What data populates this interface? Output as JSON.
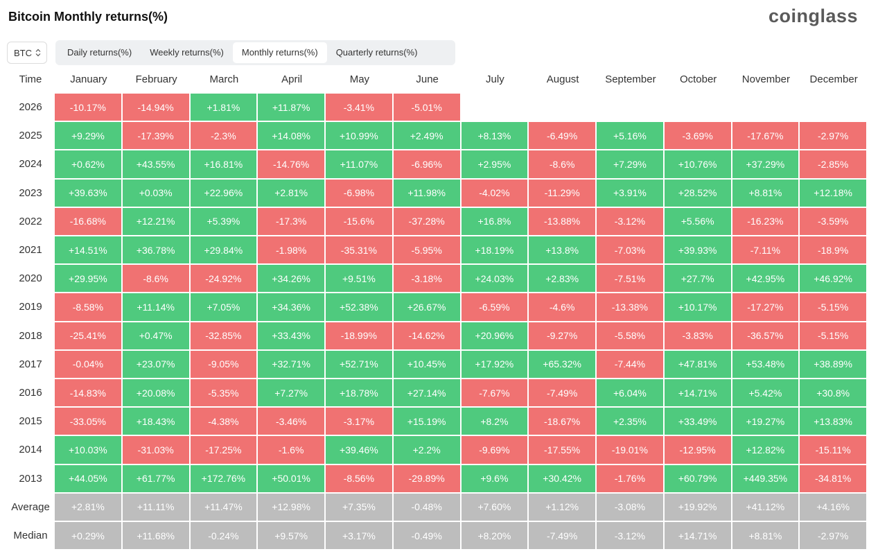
{
  "header": {
    "title": "Bitcoin Monthly returns(%)",
    "brand": "coinglass"
  },
  "selector": "BTC",
  "tabs": [
    "Daily returns(%)",
    "Weekly returns(%)",
    "Monthly returns(%)",
    "Quarterly returns(%)"
  ],
  "table": {
    "columns": [
      "Time",
      "January",
      "February",
      "March",
      "April",
      "May",
      "June",
      "July",
      "August",
      "September",
      "October",
      "November",
      "December"
    ],
    "rows": [
      [
        "2026",
        "-10.17%",
        "-14.94%",
        "+1.81%",
        "+11.87%",
        "-3.41%",
        "-5.01%"
      ],
      [
        "2025",
        "+9.29%",
        "-17.39%",
        "-2.3%",
        "+14.08%",
        "+10.99%",
        "+2.49%",
        "+8.13%",
        "-6.49%",
        "+5.16%",
        "-3.69%",
        "-17.67%",
        "-2.97%"
      ],
      [
        "2024",
        "+0.62%",
        "+43.55%",
        "+16.81%",
        "-14.76%",
        "+11.07%",
        "-6.96%",
        "+2.95%",
        "-8.6%",
        "+7.29%",
        "+10.76%",
        "+37.29%",
        "-2.85%"
      ],
      [
        "2023",
        "+39.63%",
        "+0.03%",
        "+22.96%",
        "+2.81%",
        "-6.98%",
        "+11.98%",
        "-4.02%",
        "-11.29%",
        "+3.91%",
        "+28.52%",
        "+8.81%",
        "+12.18%"
      ],
      [
        "2022",
        "-16.68%",
        "+12.21%",
        "+5.39%",
        "-17.3%",
        "-15.6%",
        "-37.28%",
        "+16.8%",
        "-13.88%",
        "-3.12%",
        "+5.56%",
        "-16.23%",
        "-3.59%"
      ],
      [
        "2021",
        "+14.51%",
        "+36.78%",
        "+29.84%",
        "-1.98%",
        "-35.31%",
        "-5.95%",
        "+18.19%",
        "+13.8%",
        "-7.03%",
        "+39.93%",
        "-7.11%",
        "-18.9%"
      ],
      [
        "2020",
        "+29.95%",
        "-8.6%",
        "-24.92%",
        "+34.26%",
        "+9.51%",
        "-3.18%",
        "+24.03%",
        "+2.83%",
        "-7.51%",
        "+27.7%",
        "+42.95%",
        "+46.92%"
      ],
      [
        "2019",
        "-8.58%",
        "+11.14%",
        "+7.05%",
        "+34.36%",
        "+52.38%",
        "+26.67%",
        "-6.59%",
        "-4.6%",
        "-13.38%",
        "+10.17%",
        "-17.27%",
        "-5.15%"
      ],
      [
        "2018",
        "-25.41%",
        "+0.47%",
        "-32.85%",
        "+33.43%",
        "-18.99%",
        "-14.62%",
        "+20.96%",
        "-9.27%",
        "-5.58%",
        "-3.83%",
        "-36.57%",
        "-5.15%"
      ],
      [
        "2017",
        "-0.04%",
        "+23.07%",
        "-9.05%",
        "+32.71%",
        "+52.71%",
        "+10.45%",
        "+17.92%",
        "+65.32%",
        "-7.44%",
        "+47.81%",
        "+53.48%",
        "+38.89%"
      ],
      [
        "2016",
        "-14.83%",
        "+20.08%",
        "-5.35%",
        "+7.27%",
        "+18.78%",
        "+27.14%",
        "-7.67%",
        "-7.49%",
        "+6.04%",
        "+14.71%",
        "+5.42%",
        "+30.8%"
      ],
      [
        "2015",
        "-33.05%",
        "+18.43%",
        "-4.38%",
        "-3.46%",
        "-3.17%",
        "+15.19%",
        "+8.2%",
        "-18.67%",
        "+2.35%",
        "+33.49%",
        "+19.27%",
        "+13.83%"
      ],
      [
        "2014",
        "+10.03%",
        "-31.03%",
        "-17.25%",
        "-1.6%",
        "+39.46%",
        "+2.2%",
        "-9.69%",
        "-17.55%",
        "-19.01%",
        "-12.95%",
        "+12.82%",
        "-15.11%"
      ],
      [
        "2013",
        "+44.05%",
        "+61.77%",
        "+172.76%",
        "+50.01%",
        "-8.56%",
        "-29.89%",
        "+9.6%",
        "+30.42%",
        "-1.76%",
        "+60.79%",
        "+449.35%",
        "-34.81%"
      ]
    ],
    "summary_rows": [
      [
        "Average",
        "+2.81%",
        "+11.11%",
        "+11.47%",
        "+12.98%",
        "+7.35%",
        "-0.48%",
        "+7.60%",
        "+1.12%",
        "-3.08%",
        "+19.92%",
        "+41.12%",
        "+4.16%"
      ],
      [
        "Median",
        "+0.29%",
        "+11.68%",
        "-0.24%",
        "+9.57%",
        "+3.17%",
        "-0.49%",
        "+8.20%",
        "-7.49%",
        "-3.12%",
        "+14.71%",
        "+8.81%",
        "-2.97%"
      ]
    ]
  }
}
